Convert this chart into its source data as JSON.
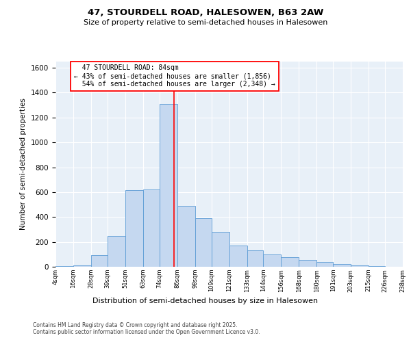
{
  "title1": "47, STOURDELL ROAD, HALESOWEN, B63 2AW",
  "title2": "Size of property relative to semi-detached houses in Halesowen",
  "xlabel": "Distribution of semi-detached houses by size in Halesowen",
  "ylabel": "Number of semi-detached properties",
  "property_label": "47 STOURDELL ROAD: 84sqm",
  "pct_smaller": 43,
  "pct_larger": 54,
  "n_smaller": "1,856",
  "n_larger": "2,348",
  "bins": [
    4,
    16,
    28,
    39,
    51,
    63,
    74,
    86,
    98,
    109,
    121,
    133,
    144,
    156,
    168,
    180,
    191,
    203,
    215,
    226,
    238
  ],
  "bin_labels": [
    "4sqm",
    "16sqm",
    "28sqm",
    "39sqm",
    "51sqm",
    "63sqm",
    "74sqm",
    "86sqm",
    "98sqm",
    "109sqm",
    "121sqm",
    "133sqm",
    "144sqm",
    "156sqm",
    "168sqm",
    "180sqm",
    "191sqm",
    "203sqm",
    "215sqm",
    "226sqm",
    "238sqm"
  ],
  "counts": [
    3,
    10,
    95,
    250,
    615,
    620,
    1310,
    490,
    390,
    280,
    170,
    130,
    100,
    75,
    55,
    40,
    20,
    10,
    5,
    2,
    2
  ],
  "bar_color": "#c5d8f0",
  "bar_edge_color": "#5b9bd5",
  "background_color": "#e8f0f8",
  "grid_color": "#ffffff",
  "vline_color": "red",
  "footer1": "Contains HM Land Registry data © Crown copyright and database right 2025.",
  "footer2": "Contains public sector information licensed under the Open Government Licence v3.0.",
  "ylim": [
    0,
    1650
  ],
  "yticks": [
    0,
    200,
    400,
    600,
    800,
    1000,
    1200,
    1400,
    1600
  ],
  "figsize": [
    6.0,
    5.0
  ],
  "dpi": 100
}
